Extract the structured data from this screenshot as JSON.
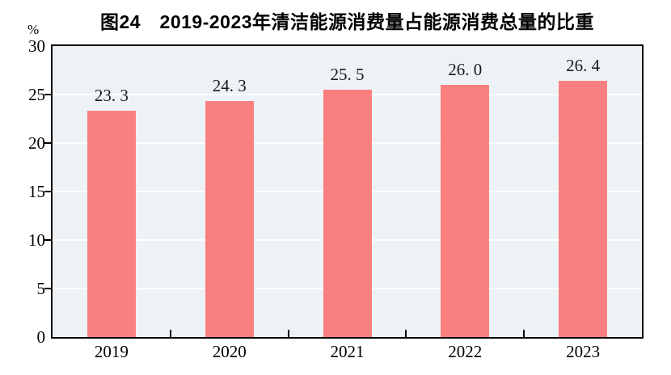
{
  "title": "图24　2019-2023年清洁能源消费量占能源消费总量的比重",
  "y_axis_unit": "%",
  "colors": {
    "bar_fill": "#fa8080",
    "plot_background": "#edf2f6",
    "gridline": "#ffffff",
    "axis": "#000000",
    "text": "#000000"
  },
  "chart_data": {
    "type": "bar",
    "title": "图24　2019-2023年清洁能源消费量占能源消费总量的比重",
    "categories": [
      "2019",
      "2020",
      "2021",
      "2022",
      "2023"
    ],
    "values": [
      23.3,
      24.3,
      25.5,
      26.0,
      26.4
    ],
    "value_labels": [
      "23. 3",
      "24. 3",
      "25. 5",
      "26. 0",
      "26. 4"
    ],
    "xlabel": "",
    "ylabel": "%",
    "ylim": [
      0,
      30
    ],
    "yticks": [
      0,
      5,
      10,
      15,
      20,
      25,
      30
    ],
    "gridline_ticks": [
      5,
      10,
      15,
      20,
      25
    ],
    "grid": true,
    "legend": "none"
  }
}
